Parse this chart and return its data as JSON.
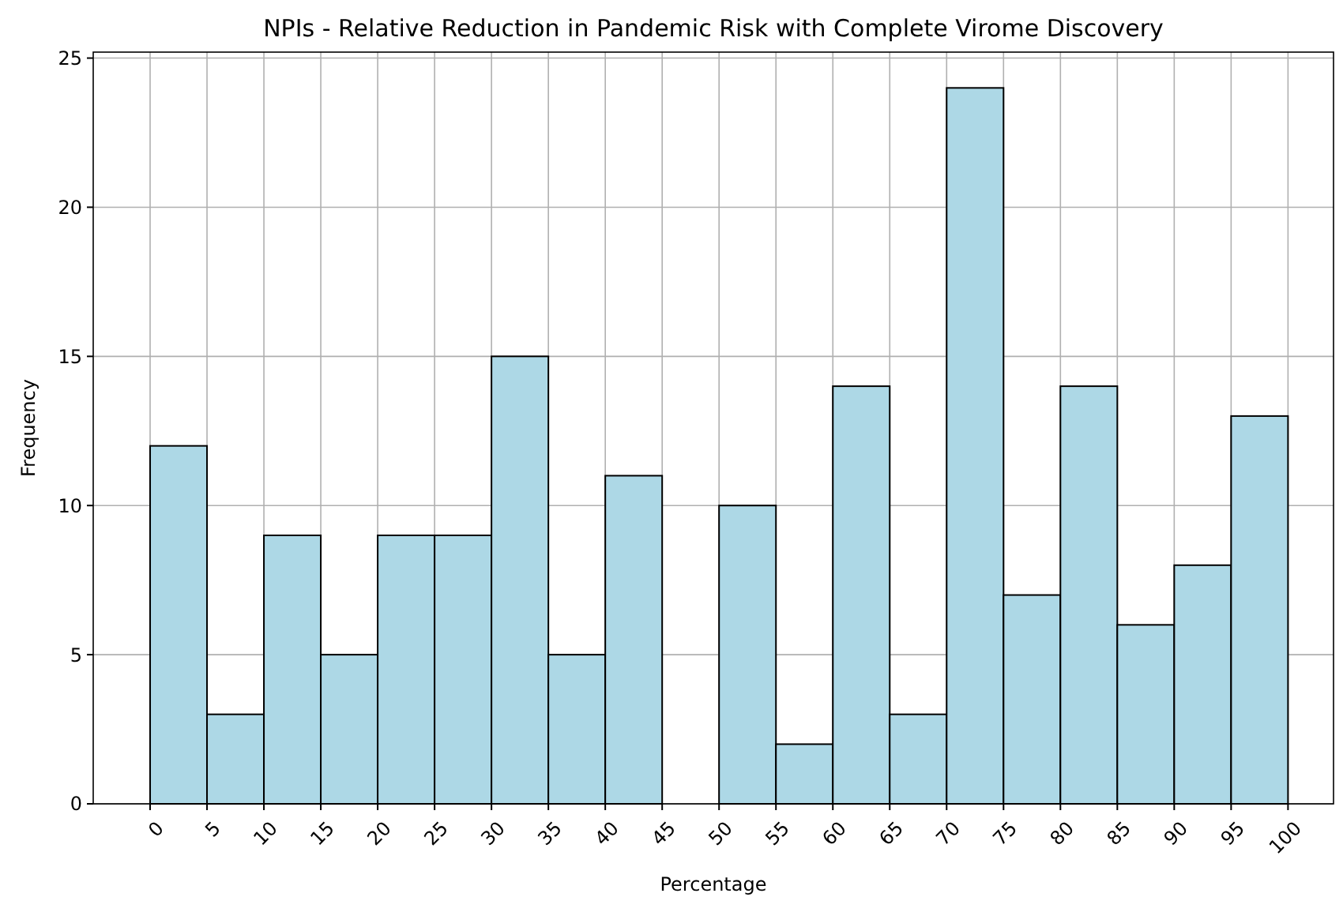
{
  "chart_data": {
    "type": "histogram",
    "title": "NPIs - Relative Reduction in Pandemic Risk with Complete Virome Discovery",
    "xlabel": "Percentage",
    "ylabel": "Frequency",
    "bins": [
      0,
      5,
      10,
      15,
      20,
      25,
      30,
      35,
      40,
      45,
      50,
      55,
      60,
      65,
      70,
      75,
      80,
      85,
      90,
      95,
      100
    ],
    "values": [
      12,
      3,
      9,
      5,
      9,
      9,
      15,
      5,
      11,
      0,
      10,
      2,
      14,
      3,
      24,
      7,
      14,
      6,
      8,
      13
    ],
    "color": "#add8e6",
    "xlim": [
      -5,
      104
    ],
    "ylim": [
      0,
      25.2
    ],
    "xticks": [
      0,
      5,
      10,
      15,
      20,
      25,
      30,
      35,
      40,
      45,
      50,
      55,
      60,
      65,
      70,
      75,
      80,
      85,
      90,
      95,
      100
    ],
    "yticks": [
      0,
      5,
      10,
      15,
      20,
      25
    ],
    "grid": true
  }
}
